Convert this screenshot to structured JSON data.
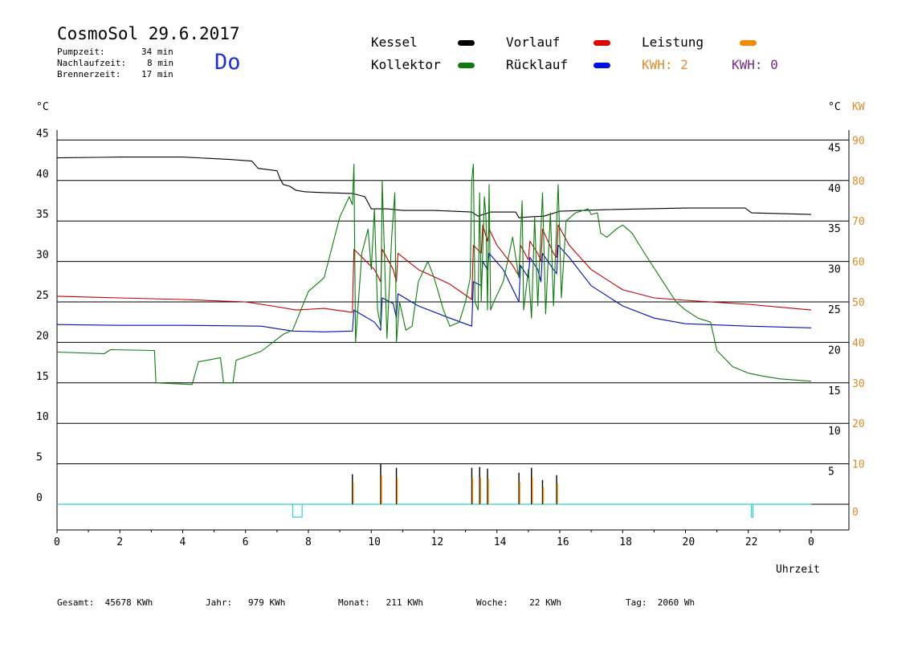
{
  "header": {
    "title": "CosmoSol 29.6.2017",
    "day": "Do",
    "stats": [
      {
        "label": "Pumpzeit:",
        "value": "34 min"
      },
      {
        "label": "Nachlaufzeit:",
        "value": "8 min"
      },
      {
        "label": "Brennerzeit:",
        "value": "17 min"
      }
    ]
  },
  "legend": {
    "kessel": {
      "label": "Kessel",
      "color": "#000000"
    },
    "vorlauf": {
      "label": "Vorlauf",
      "color": "#e00000"
    },
    "leistung": {
      "label": "Leistung",
      "color": "#f28a00"
    },
    "kollektor": {
      "label": "Kollektor",
      "color": "#107a10"
    },
    "ruecklauf": {
      "label": "Rücklauf",
      "color": "#0010e0"
    },
    "kwh1": {
      "label": "KWH: 2",
      "color": "#e08a2a"
    },
    "kwh2": {
      "label": "KWH: 0",
      "color": "#7a2a8a"
    }
  },
  "axes": {
    "left_unit": "°C",
    "right_unit_c": "°C",
    "right_unit_kw": "KW",
    "x_label": "Uhrzeit"
  },
  "footer": {
    "gesamt": "Gesamt:  45678 KWh",
    "jahr": "Jahr:   979 KWh",
    "monat": "Monat:   211 KWh",
    "woche": "Woche:    22 KWh",
    "tag": "Tag:  2060 Wh"
  },
  "chart_data": {
    "type": "line",
    "x_ticks": [
      "0",
      "2",
      "4",
      "6",
      "8",
      "10",
      "12",
      "14",
      "16",
      "18",
      "20",
      "22",
      "0"
    ],
    "x_range": [
      0,
      24
    ],
    "y_left_range": [
      -3.2,
      50
    ],
    "y_ticks_left": [
      0,
      5,
      10,
      15,
      20,
      25,
      30,
      35,
      40,
      45
    ],
    "y_ticks_right_c": [
      5,
      10,
      15,
      20,
      25,
      30,
      35,
      40,
      45
    ],
    "y_ticks_right_kw": [
      0,
      10,
      20,
      30,
      40,
      50,
      60,
      70,
      80,
      90
    ],
    "grid": "horizontal",
    "series": [
      {
        "name": "Kessel",
        "color": "#000000",
        "points": [
          [
            0,
            42.8
          ],
          [
            2,
            42.9
          ],
          [
            4,
            42.9
          ],
          [
            5.5,
            42.6
          ],
          [
            6.2,
            42.4
          ],
          [
            6.4,
            41.5
          ],
          [
            7.0,
            41.2
          ],
          [
            7.1,
            40.2
          ],
          [
            7.2,
            39.5
          ],
          [
            7.4,
            39.3
          ],
          [
            7.6,
            38.8
          ],
          [
            7.9,
            38.6
          ],
          [
            8.5,
            38.5
          ],
          [
            9.4,
            38.4
          ],
          [
            9.8,
            38.0
          ],
          [
            10.0,
            36.5
          ],
          [
            10.5,
            36.5
          ],
          [
            11.0,
            36.3
          ],
          [
            12.0,
            36.3
          ],
          [
            13.2,
            36.1
          ],
          [
            13.4,
            35.6
          ],
          [
            13.8,
            36.1
          ],
          [
            14.6,
            36.1
          ],
          [
            14.7,
            35.4
          ],
          [
            15.0,
            35.5
          ],
          [
            15.5,
            35.6
          ],
          [
            16.0,
            36.2
          ],
          [
            17.5,
            36.4
          ],
          [
            20.0,
            36.6
          ],
          [
            21.9,
            36.6
          ],
          [
            22.1,
            36.0
          ],
          [
            24.0,
            35.8
          ]
        ]
      },
      {
        "name": "Vorlauf",
        "color": "#c00000",
        "points": [
          [
            0,
            25.7
          ],
          [
            2,
            25.5
          ],
          [
            4,
            25.3
          ],
          [
            6,
            25.0
          ],
          [
            7,
            24.4
          ],
          [
            7.6,
            24.0
          ],
          [
            8.5,
            24.2
          ],
          [
            9.4,
            23.7
          ],
          [
            9.45,
            31.5
          ],
          [
            10.1,
            29.0
          ],
          [
            10.3,
            27.5
          ],
          [
            10.35,
            31.5
          ],
          [
            10.7,
            29.0
          ],
          [
            10.8,
            27.5
          ],
          [
            10.85,
            31.0
          ],
          [
            11.5,
            29.0
          ],
          [
            12.5,
            27.2
          ],
          [
            13.2,
            25.3
          ],
          [
            13.25,
            32.0
          ],
          [
            13.5,
            31.0
          ],
          [
            13.55,
            34.5
          ],
          [
            13.7,
            32.5
          ],
          [
            13.75,
            34.0
          ],
          [
            14.0,
            32.0
          ],
          [
            14.5,
            29.5
          ],
          [
            14.7,
            28.2
          ],
          [
            14.75,
            32.0
          ],
          [
            15.0,
            30.2
          ],
          [
            15.05,
            32.5
          ],
          [
            15.3,
            31.0
          ],
          [
            15.4,
            30.0
          ],
          [
            15.45,
            34.0
          ],
          [
            15.8,
            31.0
          ],
          [
            15.9,
            30.5
          ],
          [
            15.95,
            34.5
          ],
          [
            16.3,
            32.0
          ],
          [
            17.0,
            29.0
          ],
          [
            18.0,
            26.5
          ],
          [
            19.0,
            25.5
          ],
          [
            20.0,
            25.2
          ],
          [
            22.0,
            24.7
          ],
          [
            24.0,
            24.0
          ]
        ]
      },
      {
        "name": "Rücklauf",
        "color": "#0010b0",
        "points": [
          [
            0,
            22.2
          ],
          [
            2,
            22.1
          ],
          [
            4,
            22.1
          ],
          [
            6.5,
            22.0
          ],
          [
            7.0,
            21.7
          ],
          [
            7.5,
            21.4
          ],
          [
            8.5,
            21.3
          ],
          [
            9.4,
            21.4
          ],
          [
            9.45,
            24.0
          ],
          [
            10.1,
            22.5
          ],
          [
            10.3,
            21.5
          ],
          [
            10.35,
            25.5
          ],
          [
            10.7,
            24.8
          ],
          [
            10.8,
            23.0
          ],
          [
            10.85,
            26.0
          ],
          [
            11.5,
            24.5
          ],
          [
            12.5,
            23.0
          ],
          [
            13.2,
            22.0
          ],
          [
            13.25,
            27.5
          ],
          [
            13.5,
            27.0
          ],
          [
            13.55,
            30.0
          ],
          [
            13.7,
            29.0
          ],
          [
            13.75,
            31.0
          ],
          [
            14.2,
            29.0
          ],
          [
            14.7,
            25.0
          ],
          [
            14.75,
            29.5
          ],
          [
            15.0,
            28.0
          ],
          [
            15.05,
            30.5
          ],
          [
            15.3,
            29.0
          ],
          [
            15.4,
            27.5
          ],
          [
            15.45,
            31.0
          ],
          [
            15.8,
            29.0
          ],
          [
            15.9,
            28.5
          ],
          [
            15.95,
            32.0
          ],
          [
            16.3,
            30.5
          ],
          [
            17.0,
            27.0
          ],
          [
            18.0,
            24.5
          ],
          [
            19.0,
            23.0
          ],
          [
            20.0,
            22.3
          ],
          [
            22.0,
            22.0
          ],
          [
            24.0,
            21.8
          ]
        ]
      },
      {
        "name": "Kollektor",
        "color": "#107a10",
        "points": [
          [
            0,
            18.8
          ],
          [
            1.5,
            18.6
          ],
          [
            1.7,
            19.1
          ],
          [
            3.1,
            19.0
          ],
          [
            3.15,
            15.0
          ],
          [
            4.3,
            14.8
          ],
          [
            4.5,
            17.6
          ],
          [
            5.2,
            18.1
          ],
          [
            5.3,
            15.0
          ],
          [
            5.6,
            15.0
          ],
          [
            5.7,
            17.8
          ],
          [
            6.5,
            18.9
          ],
          [
            7.2,
            21.0
          ],
          [
            7.5,
            21.5
          ],
          [
            8.0,
            26.3
          ],
          [
            8.5,
            28.0
          ],
          [
            9.0,
            35.5
          ],
          [
            9.3,
            38.0
          ],
          [
            9.4,
            37.0
          ],
          [
            9.45,
            42.0
          ],
          [
            9.5,
            20.0
          ],
          [
            9.7,
            31.0
          ],
          [
            9.9,
            34.0
          ],
          [
            10.0,
            29.0
          ],
          [
            10.1,
            36.5
          ],
          [
            10.2,
            24.0
          ],
          [
            10.3,
            22.0
          ],
          [
            10.35,
            40.0
          ],
          [
            10.5,
            20.5
          ],
          [
            10.65,
            33.0
          ],
          [
            10.75,
            38.5
          ],
          [
            10.8,
            20.0
          ],
          [
            10.9,
            25.0
          ],
          [
            11.1,
            21.5
          ],
          [
            11.3,
            22.0
          ],
          [
            11.5,
            27.5
          ],
          [
            11.8,
            30.0
          ],
          [
            12.0,
            28.0
          ],
          [
            12.3,
            24.0
          ],
          [
            12.5,
            22.0
          ],
          [
            12.8,
            22.5
          ],
          [
            13.0,
            25.0
          ],
          [
            13.15,
            28.0
          ],
          [
            13.2,
            40.0
          ],
          [
            13.25,
            42.0
          ],
          [
            13.3,
            25.0
          ],
          [
            13.4,
            24.0
          ],
          [
            13.45,
            38.5
          ],
          [
            13.5,
            25.0
          ],
          [
            13.6,
            38.0
          ],
          [
            13.65,
            35.5
          ],
          [
            13.7,
            24.0
          ],
          [
            13.75,
            39.5
          ],
          [
            13.8,
            24.0
          ],
          [
            13.9,
            25.0
          ],
          [
            14.2,
            27.5
          ],
          [
            14.5,
            33.0
          ],
          [
            14.7,
            28.0
          ],
          [
            14.8,
            37.5
          ],
          [
            14.85,
            24.0
          ],
          [
            15.0,
            29.0
          ],
          [
            15.1,
            23.0
          ],
          [
            15.2,
            35.5
          ],
          [
            15.3,
            24.5
          ],
          [
            15.45,
            38.5
          ],
          [
            15.55,
            23.5
          ],
          [
            15.7,
            36.0
          ],
          [
            15.8,
            24.5
          ],
          [
            15.95,
            39.5
          ],
          [
            16.05,
            25.5
          ],
          [
            16.2,
            35.0
          ],
          [
            16.5,
            36.0
          ],
          [
            16.9,
            36.5
          ],
          [
            17.0,
            35.8
          ],
          [
            17.2,
            36.0
          ],
          [
            17.3,
            33.5
          ],
          [
            17.5,
            33.0
          ],
          [
            17.8,
            34.0
          ],
          [
            18.0,
            34.5
          ],
          [
            18.3,
            33.5
          ],
          [
            18.7,
            31.0
          ],
          [
            19.2,
            28.0
          ],
          [
            19.7,
            25.0
          ],
          [
            20.0,
            24.0
          ],
          [
            20.4,
            23.0
          ],
          [
            20.8,
            22.5
          ],
          [
            21.0,
            19.0
          ],
          [
            21.5,
            17.0
          ],
          [
            22.0,
            16.2
          ],
          [
            22.5,
            15.8
          ],
          [
            23.0,
            15.5
          ],
          [
            24.0,
            15.2
          ]
        ]
      }
    ],
    "power_bars": [
      [
        9.4,
        3.7
      ],
      [
        10.3,
        5.0
      ],
      [
        10.8,
        4.5
      ],
      [
        13.2,
        4.5
      ],
      [
        13.45,
        4.6
      ],
      [
        13.7,
        4.4
      ],
      [
        14.7,
        3.9
      ],
      [
        15.1,
        4.5
      ],
      [
        15.45,
        3.0
      ],
      [
        15.9,
        3.6
      ]
    ],
    "pump_segments": [
      [
        7.5,
        7.8
      ],
      [
        22.1,
        22.15
      ]
    ]
  }
}
